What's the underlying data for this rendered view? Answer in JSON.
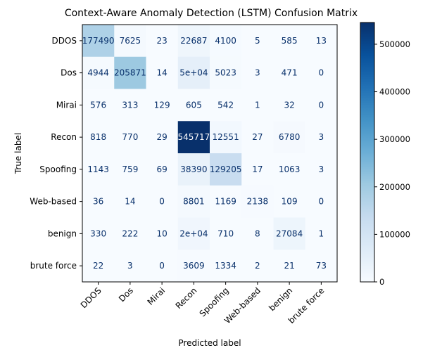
{
  "chart_data": {
    "type": "heatmap",
    "title": "Context-Aware Anomaly Detection (LSTM) Confusion Matrix",
    "xlabel": "Predicted label",
    "ylabel": "True label",
    "x_categories": [
      "DDOS",
      "Dos",
      "Mirai",
      "Recon",
      "Spoofing",
      "Web-based",
      "benign",
      "brute force"
    ],
    "y_categories": [
      "DDOS",
      "Dos",
      "Mirai",
      "Recon",
      "Spoofing",
      "Web-based",
      "benign",
      "brute force"
    ],
    "values": [
      [
        177490,
        7625,
        23,
        22687,
        4100,
        5,
        585,
        13
      ],
      [
        4944,
        205871,
        14,
        50000,
        5023,
        3,
        471,
        0
      ],
      [
        576,
        313,
        129,
        605,
        542,
        1,
        32,
        0
      ],
      [
        818,
        770,
        29,
        545717,
        12551,
        27,
        6780,
        3
      ],
      [
        1143,
        759,
        69,
        38390,
        129205,
        17,
        1063,
        3
      ],
      [
        36,
        14,
        0,
        8801,
        1169,
        2138,
        109,
        0
      ],
      [
        330,
        222,
        10,
        20000,
        710,
        8,
        27084,
        1
      ],
      [
        22,
        3,
        0,
        3609,
        1334,
        2,
        21,
        73
      ]
    ],
    "cell_labels": [
      [
        "177490",
        "7625",
        "23",
        "22687",
        "4100",
        "5",
        "585",
        "13"
      ],
      [
        "4944",
        "205871",
        "14",
        "5e+04",
        "5023",
        "3",
        "471",
        "0"
      ],
      [
        "576",
        "313",
        "129",
        "605",
        "542",
        "1",
        "32",
        "0"
      ],
      [
        "818",
        "770",
        "29",
        "545717",
        "12551",
        "27",
        "6780",
        "3"
      ],
      [
        "1143",
        "759",
        "69",
        "38390",
        "129205",
        "17",
        "1063",
        "3"
      ],
      [
        "36",
        "14",
        "0",
        "8801",
        "1169",
        "2138",
        "109",
        "0"
      ],
      [
        "330",
        "222",
        "10",
        "2e+04",
        "710",
        "8",
        "27084",
        "1"
      ],
      [
        "22",
        "3",
        "0",
        "3609",
        "1334",
        "2",
        "21",
        "73"
      ]
    ],
    "colormap": "Blues",
    "color_range": [
      0,
      545717
    ],
    "colorbar_ticks": [
      0,
      100000,
      200000,
      300000,
      400000,
      500000
    ],
    "colorbar_tick_labels": [
      "0",
      "100000",
      "200000",
      "300000",
      "400000",
      "500000"
    ],
    "grid": false
  }
}
